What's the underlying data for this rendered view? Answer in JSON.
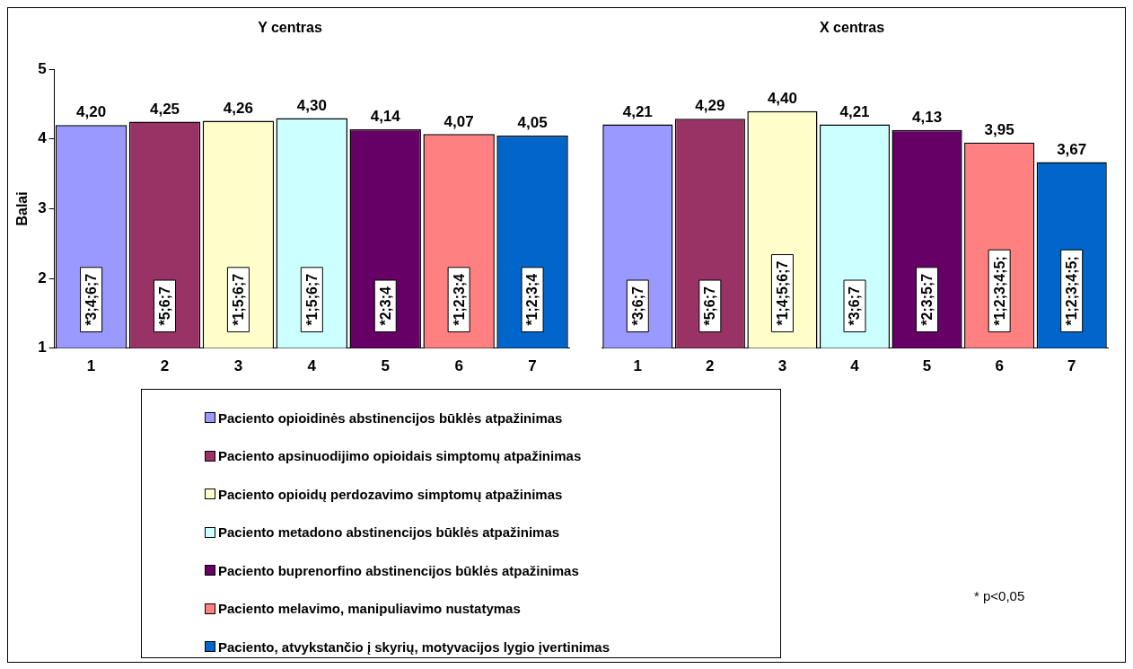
{
  "chart_data": [
    {
      "type": "bar",
      "title": "Y centras",
      "ylabel": "Balai",
      "categories": [
        "1",
        "2",
        "3",
        "4",
        "5",
        "6",
        "7"
      ],
      "series": [
        {
          "name": "Paciento opioidinės abstinencijos būklės atpažinimas",
          "color": "#9999ff",
          "values": [
            4.2,
            null,
            null,
            null,
            null,
            null,
            null
          ],
          "value_labels": [
            "4,20",
            null,
            null,
            null,
            null,
            null,
            null
          ]
        },
        {
          "name": "Paciento apsinuodijimo opioidais simptomų atpažinimas",
          "color": "#993366",
          "values": [
            null,
            4.25,
            null,
            null,
            null,
            null,
            null
          ],
          "value_labels": [
            null,
            "4,25",
            null,
            null,
            null,
            null,
            null
          ]
        },
        {
          "name": "Paciento opioidų perdozavimo simptomų atpažinimas",
          "color": "#ffffcc",
          "values": [
            null,
            null,
            4.26,
            null,
            null,
            null,
            null
          ],
          "value_labels": [
            null,
            null,
            "4,26",
            null,
            null,
            null,
            null
          ]
        },
        {
          "name": "Paciento metadono abstinencijos būklės atpažinimas",
          "color": "#ccffff",
          "values": [
            null,
            null,
            null,
            4.3,
            null,
            null,
            null
          ],
          "value_labels": [
            null,
            null,
            null,
            "4,30",
            null,
            null,
            null
          ]
        },
        {
          "name": "Paciento buprenorfino abstinencijos būklės atpažinimas",
          "color": "#660066",
          "values": [
            null,
            null,
            null,
            null,
            4.14,
            null,
            null
          ],
          "value_labels": [
            null,
            null,
            null,
            null,
            "4,14",
            null,
            null
          ]
        },
        {
          "name": "Paciento melavimo, manipuliavimo nustatymas",
          "color": "#ff8080",
          "values": [
            null,
            null,
            null,
            null,
            null,
            4.07,
            null
          ],
          "value_labels": [
            null,
            null,
            null,
            null,
            null,
            "4,07",
            null
          ]
        },
        {
          "name": "Paciento, atvykstančio į skyrių, motyvacijos lygio įvertinimas",
          "color": "#0066cc",
          "values": [
            null,
            null,
            null,
            null,
            null,
            null,
            4.05
          ],
          "value_labels": [
            null,
            null,
            null,
            null,
            null,
            null,
            "4,05"
          ]
        }
      ],
      "ylim": [
        1,
        5
      ],
      "yticks": [
        1,
        2,
        3,
        4,
        5
      ],
      "legend": "bottom",
      "annotations": [
        "*3;4;6;7",
        "*5;6;7",
        "*1;5;6;7",
        "*1;5;6;7",
        "*2;3;4",
        "*1;2;3;4",
        "*1;2;3;4"
      ]
    },
    {
      "type": "bar",
      "title": "X centras",
      "categories": [
        "1",
        "2",
        "3",
        "4",
        "5",
        "6",
        "7"
      ],
      "series": [
        {
          "color": "#9999ff",
          "values": [
            4.21,
            null,
            null,
            null,
            null,
            null,
            null
          ],
          "value_labels": [
            "4,21",
            null,
            null,
            null,
            null,
            null,
            null
          ]
        },
        {
          "color": "#993366",
          "values": [
            null,
            4.29,
            null,
            null,
            null,
            null,
            null
          ],
          "value_labels": [
            null,
            "4,29",
            null,
            null,
            null,
            null,
            null
          ]
        },
        {
          "color": "#ffffcc",
          "values": [
            null,
            null,
            4.4,
            null,
            null,
            null,
            null
          ],
          "value_labels": [
            null,
            null,
            "4,40",
            null,
            null,
            null,
            null
          ]
        },
        {
          "color": "#ccffff",
          "values": [
            null,
            null,
            null,
            4.21,
            null,
            null,
            null
          ],
          "value_labels": [
            null,
            null,
            null,
            "4,21",
            null,
            null,
            null
          ]
        },
        {
          "color": "#660066",
          "values": [
            null,
            null,
            null,
            null,
            4.13,
            null,
            null
          ],
          "value_labels": [
            null,
            null,
            null,
            null,
            "4,13",
            null,
            null
          ]
        },
        {
          "color": "#ff8080",
          "values": [
            null,
            null,
            null,
            null,
            null,
            3.95,
            null
          ],
          "value_labels": [
            null,
            null,
            null,
            null,
            null,
            "3,95",
            null
          ]
        },
        {
          "color": "#0066cc",
          "values": [
            null,
            null,
            null,
            null,
            null,
            null,
            3.67
          ],
          "value_labels": [
            null,
            null,
            null,
            null,
            null,
            null,
            "3,67"
          ]
        }
      ],
      "ylim": [
        1,
        5
      ],
      "yticks": [
        1,
        2,
        3,
        4,
        5
      ],
      "tick_labels": "x",
      "annotations": [
        "*3;6;7",
        "*5;6;7",
        "*1;4;5;6;7",
        "*3;6;7",
        "*2;3;5;7",
        "*1;2;3;4;5;",
        "*1;2;3;4;5;",
        "* p<0,05"
      ]
    }
  ]
}
